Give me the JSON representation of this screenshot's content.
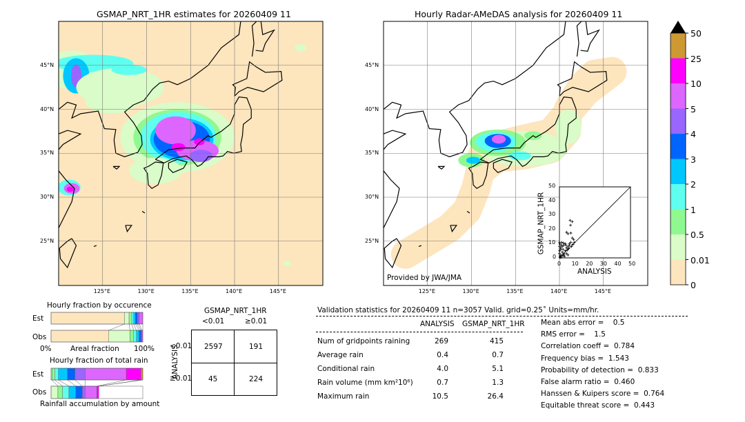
{
  "left_map": {
    "title": "GSMAP_NRT_1HR estimates for 20260409 11",
    "lon_labels": [
      "125°E",
      "130°E",
      "135°E",
      "140°E",
      "145°E"
    ],
    "lat_labels": [
      "45°N",
      "40°N",
      "35°N",
      "30°N",
      "25°N"
    ]
  },
  "right_map": {
    "title": "Hourly Radar-AMeDAS analysis for 20260409 11",
    "lon_labels": [
      "125°E",
      "130°E",
      "135°E",
      "140°E",
      "145°E"
    ],
    "lat_labels": [
      "45°N",
      "40°N",
      "35°N",
      "30°N",
      "25°N"
    ],
    "credit": "Provided by JWA/JMA"
  },
  "colorbar": {
    "labels": [
      "50",
      "25",
      "10",
      "5",
      "4",
      "3",
      "2",
      "1",
      "0.5",
      "0.01",
      "0"
    ],
    "colors": [
      "#cc9933",
      "#ff00ff",
      "#dd66ff",
      "#9966ff",
      "#0064ff",
      "#00c8ff",
      "#5ffff0",
      "#90f890",
      "#d9fcc8",
      "#fde5bd"
    ],
    "extend_color": "#000000"
  },
  "scatter": {
    "xlabel": "ANALYSIS",
    "ylabel": "GSMAP_NRT_1HR",
    "ticks": [
      "0",
      "10",
      "20",
      "30",
      "40",
      "50"
    ],
    "xlim": [
      0,
      50
    ],
    "ylim": [
      0,
      50
    ],
    "points": [
      [
        7.5,
        26.4
      ],
      [
        9,
        25.5
      ],
      [
        7.8,
        23
      ],
      [
        5,
        18
      ],
      [
        6,
        17
      ],
      [
        8,
        17.5
      ],
      [
        9,
        14
      ],
      [
        10,
        13
      ],
      [
        10.5,
        11
      ],
      [
        8,
        11
      ],
      [
        7,
        9
      ],
      [
        6,
        8
      ],
      [
        5,
        7
      ],
      [
        4,
        10
      ],
      [
        3,
        9
      ],
      [
        2,
        8
      ],
      [
        1,
        6
      ],
      [
        2,
        4
      ],
      [
        3,
        3
      ],
      [
        1,
        2
      ],
      [
        0.5,
        1
      ],
      [
        0.2,
        5
      ],
      [
        0.3,
        10
      ],
      [
        1.5,
        11
      ],
      [
        2.5,
        6
      ],
      [
        4,
        5
      ],
      [
        5,
        3
      ],
      [
        6,
        2
      ],
      [
        3.5,
        1
      ],
      [
        0.4,
        0.2
      ],
      [
        1,
        0.5
      ],
      [
        2,
        1.5
      ],
      [
        4.5,
        9
      ],
      [
        7,
        10
      ],
      [
        8.5,
        8
      ],
      [
        9.5,
        9.5
      ],
      [
        0.8,
        7
      ],
      [
        1.2,
        9
      ],
      [
        2.8,
        10.5
      ],
      [
        3.2,
        2
      ],
      [
        5.5,
        5.5
      ],
      [
        6.5,
        6.5
      ],
      [
        0,
        3
      ],
      [
        0,
        8
      ],
      [
        0.1,
        11
      ]
    ]
  },
  "occurrence": {
    "title": "Hourly fraction by occurence",
    "est_label": "Est",
    "obs_label": "Obs",
    "axis_left": "0%",
    "axis_mid": "Areal fraction",
    "axis_right": "100%",
    "est": [
      0.8,
      0.05,
      0.03,
      0.02,
      0.02,
      0.02,
      0.02,
      0.04
    ],
    "obs": [
      0.63,
      0.23,
      0.04,
      0.03,
      0.03,
      0.02,
      0.01,
      0.01
    ]
  },
  "total_rain": {
    "title": "Hourly fraction of total rain",
    "est_label": "Est",
    "obs_label": "Obs",
    "footer": "Rainfall accumulation by amount",
    "est": [
      0.01,
      0.03,
      0.04,
      0.1,
      0.08,
      0.11,
      0.45,
      0.16,
      0.02
    ],
    "obs": [
      0.075,
      0.05,
      0.07,
      0.075,
      0.07,
      0.03,
      0.13,
      0.02,
      0
    ]
  },
  "contingency": {
    "title": "GSMAP_NRT_1HR",
    "col_labels": [
      "<0.01",
      "≥0.01"
    ],
    "row_axis": "ANALYSIS",
    "row_labels": [
      "<0.01",
      "≥0.01"
    ],
    "cells": [
      [
        "2597",
        "191"
      ],
      [
        "45",
        "224"
      ]
    ]
  },
  "stats": {
    "header": "Validation statistics for 20260409 11  n=3057 Valid. grid=0.25˚ Units=mm/hr.",
    "col1": "ANALYSIS",
    "col2": "GSMAP_NRT_1HR",
    "rows": [
      {
        "label": "Num of gridpoints raining",
        "a": "269",
        "g": "415"
      },
      {
        "label": "Average rain",
        "a": "0.4",
        "g": "0.7"
      },
      {
        "label": "Conditional rain",
        "a": "4.0",
        "g": "5.1"
      },
      {
        "label": "Rain volume (mm km²10⁶)",
        "a": "0.7",
        "g": "1.3"
      },
      {
        "label": "Maximum rain",
        "a": "10.5",
        "g": "26.4"
      }
    ],
    "scores": [
      "Mean abs error =    0.5",
      "RMS error =    1.5",
      "Correlation coeff =  0.784",
      "Frequency bias =  1.543",
      "Probability of detection =  0.833",
      "False alarm ratio =  0.460",
      "Hanssen & Kuipers score =  0.764",
      "Equitable threat score =  0.443"
    ]
  }
}
